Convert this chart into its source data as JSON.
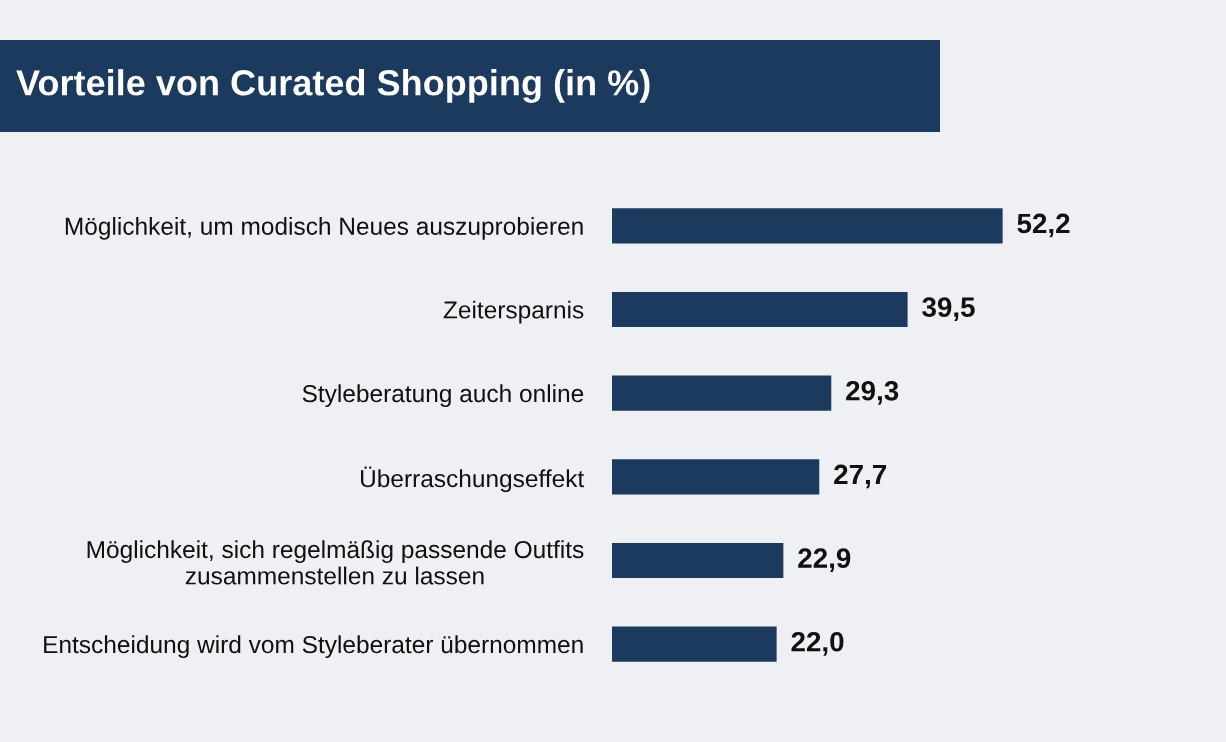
{
  "chart_data": {
    "type": "bar",
    "orientation": "horizontal",
    "title": "Vorteile von Curated Shopping (in %)",
    "categories": [
      "Möglichkeit, um modisch Neues auszuprobieren",
      "Zeitersparnis",
      "Styleberatung auch online",
      "Überraschungseffekt",
      "Möglichkeit, sich regelmäßig passende Outfits\nzusammenstellen zu lassen",
      "Entscheidung wird vom Styleberater übernommen"
    ],
    "values": [
      52.2,
      39.5,
      29.3,
      27.7,
      22.9,
      22.0
    ],
    "value_labels": [
      "52,2",
      "39,5",
      "29,3",
      "27,7",
      "22,9",
      "22,0"
    ],
    "color": "#1c3a5e",
    "grid": false,
    "legend": false
  }
}
